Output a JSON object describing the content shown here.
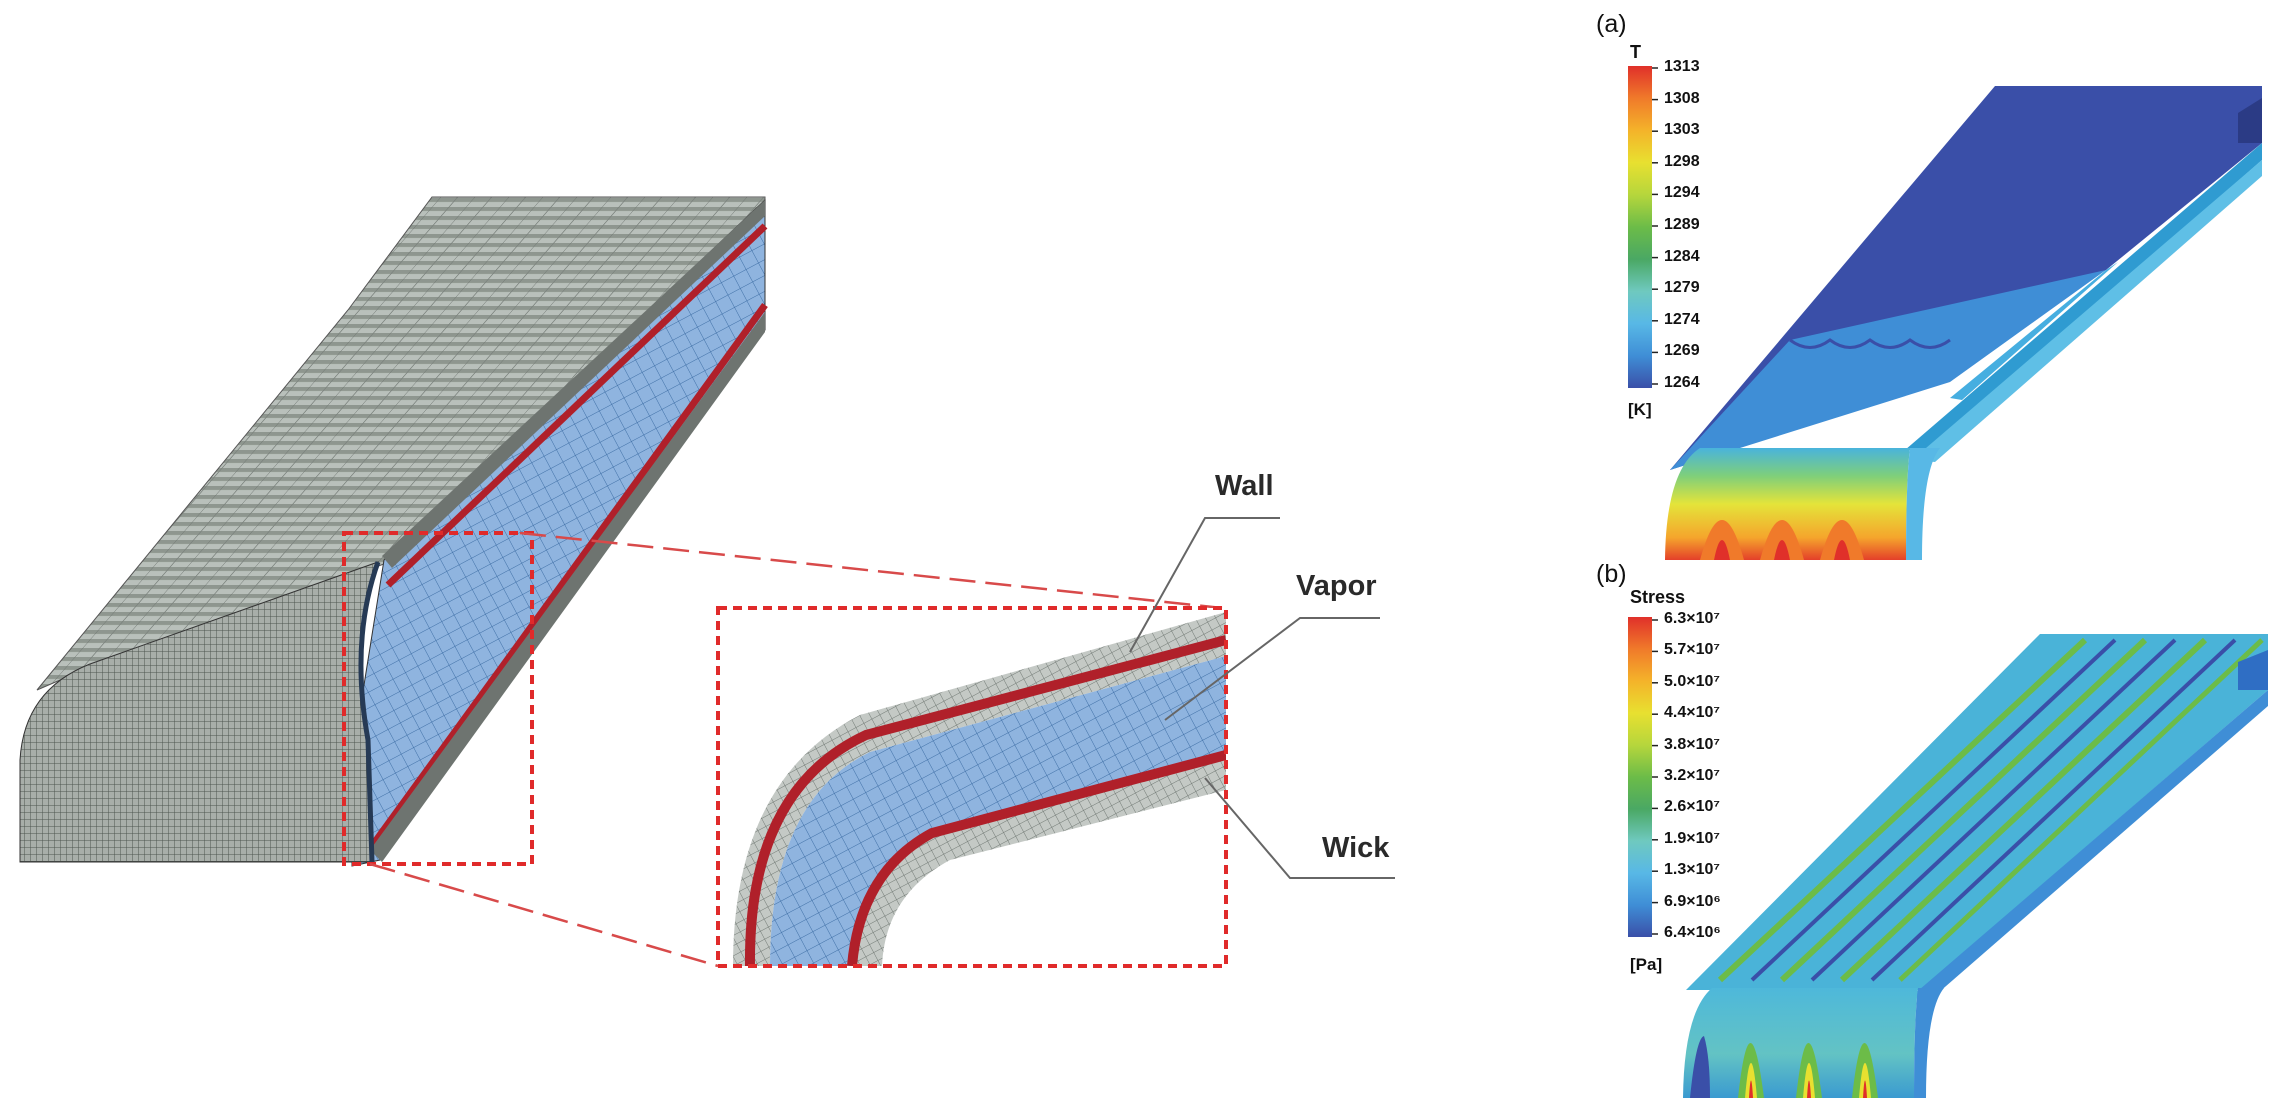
{
  "callouts": {
    "wall": "Wall",
    "vapor": "Vapor",
    "wick": "Wick"
  },
  "panel_a": {
    "label": "(a)",
    "colorbar_title": "T",
    "unit": "[K]",
    "ticks": [
      "1313",
      "1308",
      "1303",
      "1298",
      "1294",
      "1289",
      "1284",
      "1279",
      "1274",
      "1269",
      "1264"
    ]
  },
  "panel_b": {
    "label": "(b)",
    "colorbar_title": "Stress",
    "unit": "[Pa]",
    "ticks": [
      "6.3×10⁷",
      "5.7×10⁷",
      "5.0×10⁷",
      "4.4×10⁷",
      "3.8×10⁷",
      "3.2×10⁷",
      "2.6×10⁷",
      "1.9×10⁷",
      "1.3×10⁷",
      "6.9×10⁶",
      "6.4×10⁶"
    ]
  },
  "colors": {
    "scale": [
      "#e0302a",
      "#f07a2a",
      "#f4b32a",
      "#e8e030",
      "#b6d63c",
      "#6cbc48",
      "#4aa864",
      "#6fc9bf",
      "#58b8e6",
      "#3f8ed6",
      "#3a4fa8"
    ],
    "highlight": "#e02a2a",
    "wick": "#b0202a",
    "vapor": "#7fa8d8",
    "wall_mesh": "#9aa39c"
  }
}
